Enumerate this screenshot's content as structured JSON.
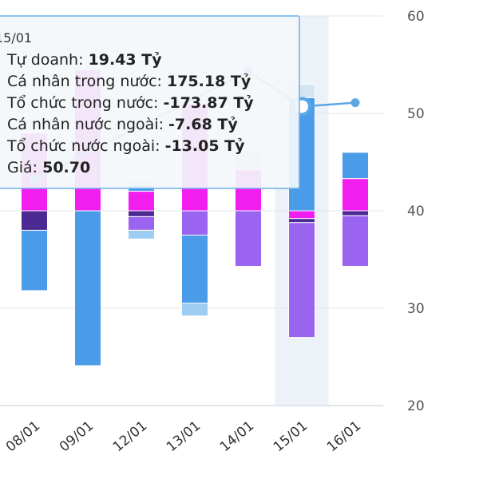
{
  "chart_data": {
    "type": "bar",
    "stacked": true,
    "categories": [
      "08/01",
      "09/01",
      "12/01",
      "13/01",
      "14/01",
      "15/01",
      "16/01"
    ],
    "y_axis": {
      "position": "right",
      "ylim": [
        20,
        60
      ],
      "ticks": [
        20,
        30,
        40,
        50,
        60
      ],
      "grid": true
    },
    "price_axis_ticks": [
      "60",
      "50",
      "40",
      "30",
      "20"
    ],
    "highlighted_category": "15/01",
    "series": [
      {
        "key": "tu_doanh",
        "name": "Tự doanh",
        "color": "#d3e4f3",
        "segments": [
          {
            "category": "12/01",
            "from": 42.6,
            "to": 43.2
          },
          {
            "category": "14/01",
            "from": 44.2,
            "to": 46.0
          },
          {
            "category": "15/01",
            "from": 51.6,
            "to": 53.0
          },
          {
            "category": "08/01",
            "from": 38.0,
            "to": 37.8
          }
        ]
      },
      {
        "key": "ca_nhan_trong_nuoc",
        "name": "Cá nhân trong nước",
        "color": "#4a9be8",
        "segments": [
          {
            "category": "08/01",
            "from": 38.0,
            "to": 31.8
          },
          {
            "category": "09/01",
            "from": 40.0,
            "to": 24.1
          },
          {
            "category": "12/01",
            "from": 42.0,
            "to": 42.6
          },
          {
            "category": "13/01",
            "from": 37.5,
            "to": 30.5
          },
          {
            "category": "15/01",
            "from": 40.0,
            "to": 51.6
          },
          {
            "category": "16/01",
            "from": 43.3,
            "to": 46.0
          }
        ]
      },
      {
        "key": "to_chuc_trong_nuoc",
        "name": "Tổ chức trong nước",
        "color": "#9a63f0",
        "segments": [
          {
            "category": "12/01",
            "from": 39.4,
            "to": 38.0
          },
          {
            "category": "13/01",
            "from": 40.0,
            "to": 37.5
          },
          {
            "category": "14/01",
            "from": 40.0,
            "to": 34.3
          },
          {
            "category": "15/01",
            "from": 38.8,
            "to": 27.0
          },
          {
            "category": "16/01",
            "from": 39.5,
            "to": 34.3
          }
        ]
      },
      {
        "key": "ca_nhan_nuoc_ngoai",
        "name": "Cá nhân nước ngoài",
        "color": "#f21ef0",
        "segments": [
          {
            "category": "08/01",
            "from": 40.0,
            "to": 48.0
          },
          {
            "category": "09/01",
            "from": 40.0,
            "to": 54.5
          },
          {
            "category": "12/01",
            "from": 40.0,
            "to": 42.0
          },
          {
            "category": "13/01",
            "from": 40.0,
            "to": 51.0
          },
          {
            "category": "14/01",
            "from": 40.0,
            "to": 44.2
          },
          {
            "category": "15/01",
            "from": 40.0,
            "to": 39.2
          },
          {
            "category": "16/01",
            "from": 40.0,
            "to": 43.3
          }
        ]
      },
      {
        "key": "to_chuc_nuoc_ngoai",
        "name": "Tổ chức nước ngoài",
        "color": "#4b2a94",
        "segments": [
          {
            "category": "08/01",
            "from": 40.0,
            "to": 38.0
          },
          {
            "category": "12/01",
            "from": 40.0,
            "to": 39.4
          },
          {
            "category": "15/01",
            "from": 39.2,
            "to": 38.8
          },
          {
            "category": "16/01",
            "from": 40.0,
            "to": 39.5
          }
        ]
      },
      {
        "key": "extra_light",
        "name": "",
        "color": "#9ecdf4",
        "segments": [
          {
            "category": "12/01",
            "from": 38.0,
            "to": 37.1
          },
          {
            "category": "13/01",
            "from": 30.5,
            "to": 29.2
          }
        ]
      }
    ],
    "price_line": {
      "name": "Giá",
      "color": "#5ba7e6",
      "points": [
        {
          "category": "08/01",
          "value": 43.2
        },
        {
          "category": "14/01",
          "value": 54.3
        },
        {
          "category": "15/01",
          "value": 50.7
        },
        {
          "category": "16/01",
          "value": 51.1
        }
      ]
    },
    "tooltip": {
      "date": "15/01",
      "rows": [
        {
          "label": "Tự doanh: ",
          "value": "19.43 Tỷ"
        },
        {
          "label": "Cá nhân trong nước: ",
          "value": "175.18 Tỷ"
        },
        {
          "label": "Tổ chức trong nước: ",
          "value": "-173.87 Tỷ"
        },
        {
          "label": "Cá nhân nước ngoài: ",
          "value": "-7.68 Tỷ"
        },
        {
          "label": "Tổ chức nước ngoài: ",
          "value": "-13.05 Tỷ"
        },
        {
          "label": "Giá: ",
          "value": "50.70"
        }
      ]
    }
  }
}
